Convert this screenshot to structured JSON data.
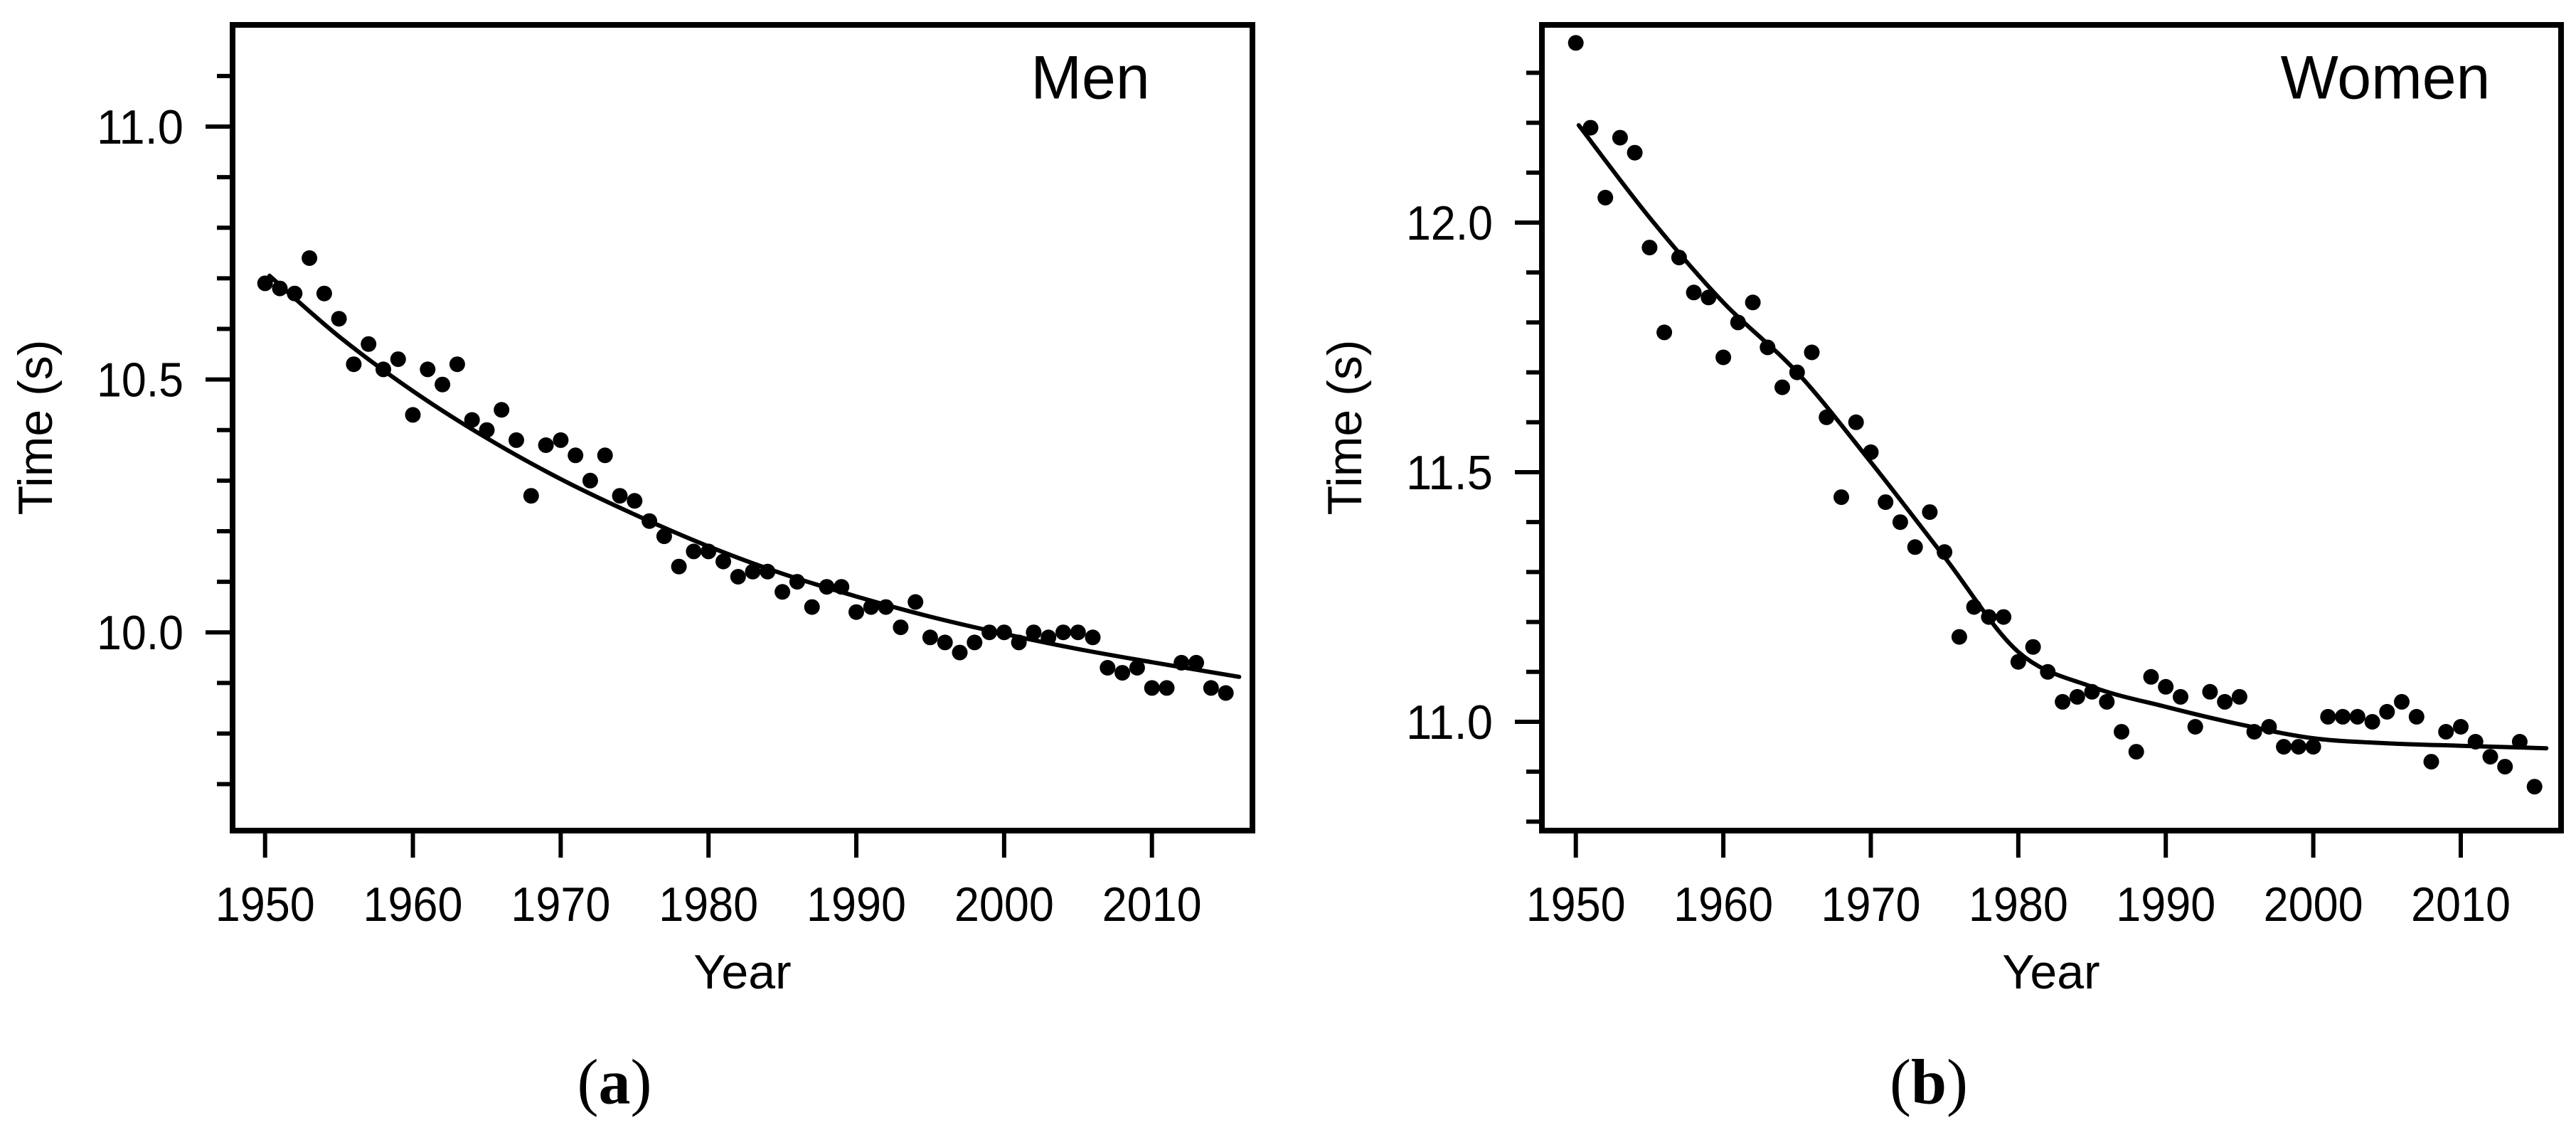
{
  "figure": {
    "background": "#ffffff",
    "ink_color": "#000000",
    "panels": [
      {
        "id": "a",
        "series_label": "Men",
        "tag": {
          "open": "(",
          "letter": "a",
          "close": ")"
        },
        "x_axis_title": "Year",
        "y_axis_title": "Time (s)"
      },
      {
        "id": "b",
        "series_label": "Women",
        "tag": {
          "open": "(",
          "letter": "b",
          "close": ")"
        },
        "x_axis_title": "Year",
        "y_axis_title": "Time (s)"
      }
    ]
  },
  "chart_data": [
    {
      "type": "scatter",
      "panel": "a",
      "title": "Men",
      "xlabel": "Year",
      "ylabel": "Time (s)",
      "xlim": [
        1947.8,
        2016.8
      ],
      "ylim": [
        9.608,
        11.201
      ],
      "xticks": [
        1950,
        1960,
        1970,
        1980,
        1990,
        2000,
        2010
      ],
      "xtick_labels": [
        "1950",
        "1960",
        "1970",
        "1980",
        "1990",
        "2000",
        "2010"
      ],
      "yticks_major": [
        11.0,
        10.5,
        10.0
      ],
      "ytick_labels": [
        "11.0",
        "10.5",
        "10.0"
      ],
      "yticks_minor": [
        9.7,
        9.8,
        9.9,
        10.1,
        10.2,
        10.3,
        10.4,
        10.6,
        10.7,
        10.8,
        10.9,
        11.1
      ],
      "grid": false,
      "legend": "none",
      "marker": "filled-dot",
      "points": [
        [
          1950,
          10.69
        ],
        [
          1951,
          10.68
        ],
        [
          1952,
          10.67
        ],
        [
          1953,
          10.74
        ],
        [
          1954,
          10.67
        ],
        [
          1955,
          10.62
        ],
        [
          1956,
          10.53
        ],
        [
          1957,
          10.57
        ],
        [
          1958,
          10.52
        ],
        [
          1959,
          10.54
        ],
        [
          1960,
          10.43
        ],
        [
          1961,
          10.52
        ],
        [
          1962,
          10.49
        ],
        [
          1963,
          10.53
        ],
        [
          1964,
          10.42
        ],
        [
          1965,
          10.4
        ],
        [
          1966,
          10.44
        ],
        [
          1967,
          10.38
        ],
        [
          1968,
          10.27
        ],
        [
          1969,
          10.37
        ],
        [
          1970,
          10.38
        ],
        [
          1971,
          10.35
        ],
        [
          1972,
          10.3
        ],
        [
          1973,
          10.35
        ],
        [
          1974,
          10.27
        ],
        [
          1975,
          10.26
        ],
        [
          1976,
          10.22
        ],
        [
          1977,
          10.19
        ],
        [
          1978,
          10.13
        ],
        [
          1979,
          10.16
        ],
        [
          1980,
          10.16
        ],
        [
          1981,
          10.14
        ],
        [
          1982,
          10.11
        ],
        [
          1983,
          10.12
        ],
        [
          1984,
          10.12
        ],
        [
          1985,
          10.08
        ],
        [
          1986,
          10.1
        ],
        [
          1987,
          10.05
        ],
        [
          1988,
          10.09
        ],
        [
          1989,
          10.09
        ],
        [
          1990,
          10.04
        ],
        [
          1991,
          10.05
        ],
        [
          1992,
          10.05
        ],
        [
          1993,
          10.01
        ],
        [
          1994,
          10.06
        ],
        [
          1995,
          9.99
        ],
        [
          1996,
          9.98
        ],
        [
          1997,
          9.96
        ],
        [
          1998,
          9.98
        ],
        [
          1999,
          10.0
        ],
        [
          2000,
          10.0
        ],
        [
          2001,
          9.98
        ],
        [
          2002,
          10.0
        ],
        [
          2003,
          9.99
        ],
        [
          2004,
          10.0
        ],
        [
          2005,
          10.0
        ],
        [
          2006,
          9.99
        ],
        [
          2007,
          9.93
        ],
        [
          2008,
          9.92
        ],
        [
          2009,
          9.93
        ],
        [
          2010,
          9.89
        ],
        [
          2011,
          9.89
        ],
        [
          2012,
          9.94
        ],
        [
          2013,
          9.94
        ],
        [
          2014,
          9.89
        ],
        [
          2015,
          9.88
        ]
      ],
      "fit_curve": [
        [
          1950.3,
          10.705
        ],
        [
          1955,
          10.585
        ],
        [
          1960,
          10.477
        ],
        [
          1965,
          10.384
        ],
        [
          1970,
          10.303
        ],
        [
          1975,
          10.233
        ],
        [
          1980,
          10.17
        ],
        [
          1985,
          10.116
        ],
        [
          1990,
          10.071
        ],
        [
          1995,
          10.031
        ],
        [
          2000,
          9.997
        ],
        [
          2005,
          9.967
        ],
        [
          2010,
          9.941
        ],
        [
          2015.9,
          9.912
        ]
      ]
    },
    {
      "type": "scatter",
      "panel": "b",
      "title": "Women",
      "xlabel": "Year",
      "ylabel": "Time (s)",
      "xlim": [
        1947.7,
        2016.8
      ],
      "ylim": [
        10.782,
        12.396
      ],
      "xticks": [
        1950,
        1960,
        1970,
        1980,
        1990,
        2000,
        2010
      ],
      "xtick_labels": [
        "1950",
        "1960",
        "1970",
        "1980",
        "1990",
        "2000",
        "2010"
      ],
      "yticks_major": [
        12.0,
        11.5,
        11.0
      ],
      "ytick_labels": [
        "12.0",
        "11.5",
        "11.0"
      ],
      "yticks_minor": [
        10.8,
        10.9,
        11.1,
        11.2,
        11.3,
        11.4,
        11.6,
        11.7,
        11.8,
        11.9,
        12.1,
        12.2,
        12.3
      ],
      "grid": false,
      "legend": "none",
      "marker": "filled-dot",
      "points": [
        [
          1950,
          12.36
        ],
        [
          1951,
          12.19
        ],
        [
          1952,
          12.05
        ],
        [
          1953,
          12.17
        ],
        [
          1954,
          12.14
        ],
        [
          1955,
          11.95
        ],
        [
          1956,
          11.78
        ],
        [
          1957,
          11.93
        ],
        [
          1958,
          11.86
        ],
        [
          1959,
          11.85
        ],
        [
          1960,
          11.73
        ],
        [
          1961,
          11.8
        ],
        [
          1962,
          11.84
        ],
        [
          1963,
          11.75
        ],
        [
          1964,
          11.67
        ],
        [
          1965,
          11.7
        ],
        [
          1966,
          11.74
        ],
        [
          1967,
          11.61
        ],
        [
          1968,
          11.45
        ],
        [
          1969,
          11.6
        ],
        [
          1970,
          11.54
        ],
        [
          1971,
          11.44
        ],
        [
          1972,
          11.4
        ],
        [
          1973,
          11.35
        ],
        [
          1974,
          11.42
        ],
        [
          1975,
          11.34
        ],
        [
          1976,
          11.17
        ],
        [
          1977,
          11.23
        ],
        [
          1978,
          11.21
        ],
        [
          1979,
          11.21
        ],
        [
          1980,
          11.12
        ],
        [
          1981,
          11.15
        ],
        [
          1982,
          11.1
        ],
        [
          1983,
          11.04
        ],
        [
          1984,
          11.05
        ],
        [
          1985,
          11.06
        ],
        [
          1986,
          11.04
        ],
        [
          1987,
          10.98
        ],
        [
          1988,
          10.94
        ],
        [
          1989,
          11.09
        ],
        [
          1990,
          11.07
        ],
        [
          1991,
          11.05
        ],
        [
          1992,
          10.99
        ],
        [
          1993,
          11.06
        ],
        [
          1994,
          11.04
        ],
        [
          1995,
          11.05
        ],
        [
          1996,
          10.98
        ],
        [
          1997,
          10.99
        ],
        [
          1998,
          10.95
        ],
        [
          1999,
          10.95
        ],
        [
          2000,
          10.95
        ],
        [
          2001,
          11.01
        ],
        [
          2002,
          11.01
        ],
        [
          2003,
          11.01
        ],
        [
          2004,
          11.0
        ],
        [
          2005,
          11.02
        ],
        [
          2006,
          11.04
        ],
        [
          2007,
          11.01
        ],
        [
          2008,
          10.92
        ],
        [
          2009,
          10.98
        ],
        [
          2010,
          10.99
        ],
        [
          2011,
          10.96
        ],
        [
          2012,
          10.93
        ],
        [
          2013,
          10.91
        ],
        [
          2014,
          10.96
        ],
        [
          2015,
          10.87
        ]
      ],
      "fit_curve": [
        [
          1950.2,
          12.195
        ],
        [
          1955,
          12.01
        ],
        [
          1960,
          11.84
        ],
        [
          1965,
          11.7
        ],
        [
          1970,
          11.52
        ],
        [
          1975,
          11.33
        ],
        [
          1980,
          11.14
        ],
        [
          1985,
          11.07
        ],
        [
          1990,
          11.03
        ],
        [
          1995,
          10.995
        ],
        [
          2000,
          10.967
        ],
        [
          2005,
          10.957
        ],
        [
          2010,
          10.952
        ],
        [
          2015.8,
          10.947
        ]
      ]
    }
  ]
}
